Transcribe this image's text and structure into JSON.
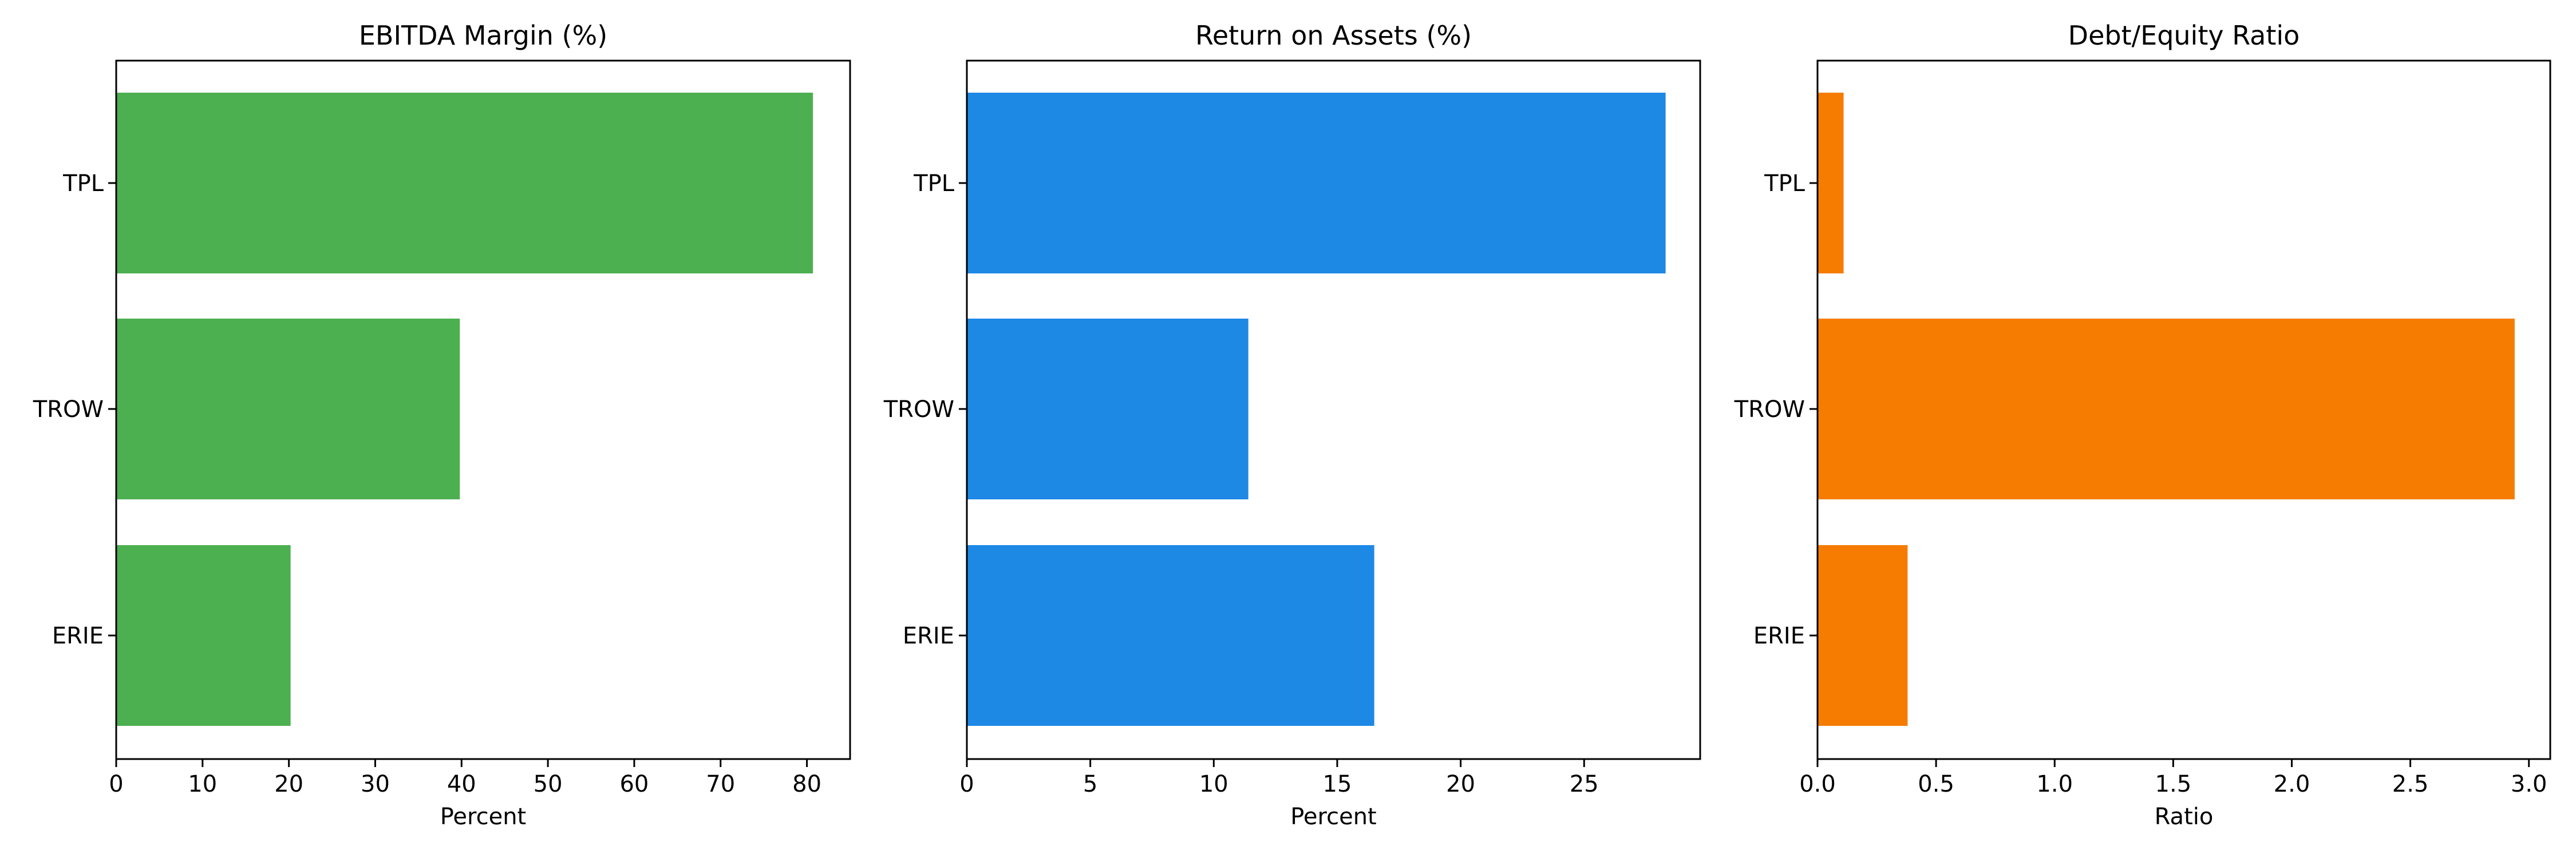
{
  "chart_data": [
    {
      "type": "bar",
      "orientation": "horizontal",
      "title": "EBITDA Margin (%)",
      "xlabel": "Percent",
      "ylabel": "",
      "categories": [
        "TPL",
        "TROW",
        "ERIE"
      ],
      "values": [
        80.7,
        39.8,
        20.2
      ],
      "xlim": [
        0,
        85
      ],
      "xticks": [
        "0",
        "10",
        "20",
        "30",
        "40",
        "50",
        "60",
        "70",
        "80"
      ],
      "color": "#4caf50",
      "grid": false
    },
    {
      "type": "bar",
      "orientation": "horizontal",
      "title": "Return on Assets (%)",
      "xlabel": "Percent",
      "ylabel": "",
      "categories": [
        "TPL",
        "TROW",
        "ERIE"
      ],
      "values": [
        28.3,
        11.4,
        16.5
      ],
      "xlim": [
        0,
        29.7
      ],
      "xticks": [
        "0",
        "5",
        "10",
        "15",
        "20",
        "25"
      ],
      "color": "#1e88e5",
      "grid": false
    },
    {
      "type": "bar",
      "orientation": "horizontal",
      "title": "Debt/Equity Ratio",
      "xlabel": "Ratio",
      "ylabel": "",
      "categories": [
        "TPL",
        "TROW",
        "ERIE"
      ],
      "values": [
        0.11,
        2.94,
        0.38
      ],
      "xlim": [
        0,
        3.09
      ],
      "xticks": [
        "0.0",
        "0.5",
        "1.0",
        "1.5",
        "2.0",
        "2.5",
        "3.0"
      ],
      "color": "#f57c00",
      "grid": false
    }
  ]
}
